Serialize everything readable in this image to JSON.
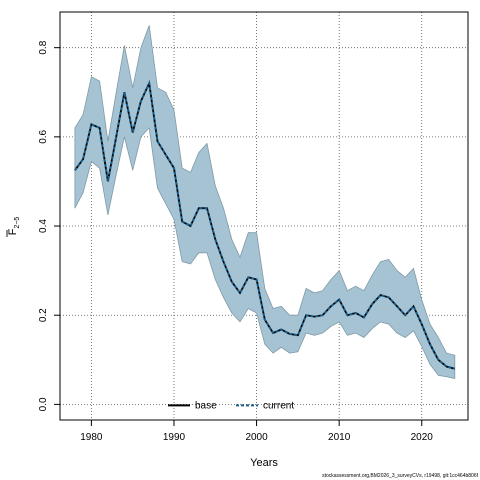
{
  "chart_data": {
    "type": "line",
    "title": "",
    "xlabel": "Years",
    "ylabel": "F",
    "ylabel_sub": "2−5",
    "xlim": [
      1976.2,
      2025.6
    ],
    "ylim": [
      -0.035,
      0.88
    ],
    "x_ticks": [
      1980,
      1990,
      2000,
      2010,
      2020
    ],
    "y_ticks": [
      0.0,
      0.2,
      0.4,
      0.6,
      0.8
    ],
    "y_tick_labels": [
      "0.0",
      "0.2",
      "0.4",
      "0.6",
      "0.8"
    ],
    "grid": true,
    "legend_position": "bottom-center",
    "band_color": "#a6c3d3",
    "band_edge_color": "#7f9aa8",
    "x": [
      1978,
      1979,
      1980,
      1981,
      1982,
      1983,
      1984,
      1985,
      1986,
      1987,
      1988,
      1989,
      1990,
      1991,
      1992,
      1993,
      1994,
      1995,
      1996,
      1997,
      1998,
      1999,
      2000,
      2001,
      2002,
      2003,
      2004,
      2005,
      2006,
      2007,
      2008,
      2009,
      2010,
      2011,
      2012,
      2013,
      2014,
      2015,
      2016,
      2017,
      2018,
      2019,
      2020,
      2021,
      2022,
      2023,
      2024
    ],
    "series": [
      {
        "name": "base",
        "style": "solid",
        "color": "#000000",
        "values": [
          0.525,
          0.55,
          0.628,
          0.62,
          0.5,
          0.6,
          0.7,
          0.61,
          0.68,
          0.72,
          0.59,
          0.56,
          0.53,
          0.41,
          0.4,
          0.44,
          0.44,
          0.37,
          0.32,
          0.275,
          0.25,
          0.285,
          0.28,
          0.19,
          0.16,
          0.168,
          0.158,
          0.155,
          0.2,
          0.197,
          0.2,
          0.22,
          0.235,
          0.2,
          0.205,
          0.195,
          0.225,
          0.245,
          0.24,
          0.22,
          0.2,
          0.22,
          0.18,
          0.135,
          0.1,
          0.085,
          0.08
        ]
      },
      {
        "name": "current",
        "style": "dashed",
        "color": "#1a5f8c",
        "values": [
          0.525,
          0.55,
          0.628,
          0.62,
          0.5,
          0.6,
          0.7,
          0.61,
          0.68,
          0.72,
          0.59,
          0.56,
          0.53,
          0.41,
          0.4,
          0.44,
          0.44,
          0.37,
          0.32,
          0.275,
          0.25,
          0.285,
          0.28,
          0.19,
          0.16,
          0.168,
          0.158,
          0.155,
          0.2,
          0.197,
          0.2,
          0.22,
          0.235,
          0.2,
          0.205,
          0.195,
          0.225,
          0.245,
          0.24,
          0.22,
          0.2,
          0.22,
          0.18,
          0.135,
          0.1,
          0.085,
          0.08
        ]
      }
    ],
    "band": {
      "upper": [
        0.62,
        0.65,
        0.735,
        0.725,
        0.59,
        0.7,
        0.805,
        0.71,
        0.8,
        0.85,
        0.71,
        0.7,
        0.66,
        0.53,
        0.52,
        0.565,
        0.585,
        0.49,
        0.44,
        0.37,
        0.33,
        0.385,
        0.385,
        0.26,
        0.215,
        0.22,
        0.2,
        0.2,
        0.26,
        0.25,
        0.255,
        0.28,
        0.3,
        0.255,
        0.265,
        0.255,
        0.29,
        0.32,
        0.325,
        0.3,
        0.285,
        0.305,
        0.235,
        0.18,
        0.15,
        0.115,
        0.11
      ],
      "lower": [
        0.44,
        0.475,
        0.545,
        0.53,
        0.425,
        0.515,
        0.6,
        0.525,
        0.6,
        0.62,
        0.485,
        0.45,
        0.415,
        0.32,
        0.315,
        0.34,
        0.34,
        0.28,
        0.24,
        0.205,
        0.185,
        0.215,
        0.205,
        0.135,
        0.115,
        0.128,
        0.115,
        0.118,
        0.16,
        0.155,
        0.16,
        0.175,
        0.185,
        0.155,
        0.16,
        0.15,
        0.17,
        0.185,
        0.18,
        0.16,
        0.15,
        0.165,
        0.13,
        0.09,
        0.065,
        0.062,
        0.058
      ]
    }
  },
  "footer": {
    "text": "stockassessment.org,BM2026_3_surveyCVs, r19498, git:1cc464b806f"
  }
}
